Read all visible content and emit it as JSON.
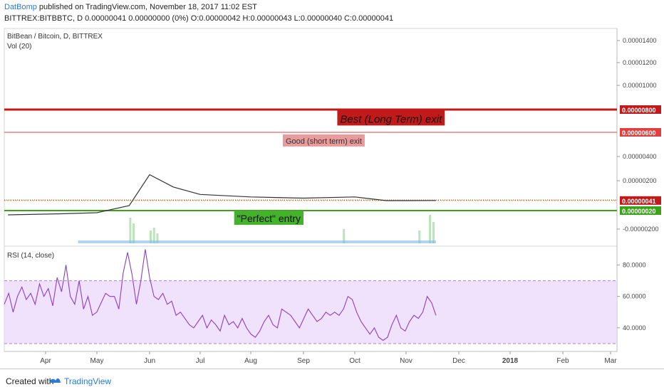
{
  "header": {
    "author": "DatBomp",
    "published": "published on TradingView.com, November 18, 2017 11:02 EST",
    "symbol_line": "BITTREX:BITBBTC, D  0.00000041 0.00000000 (0%) O:0.00000042 H:0.00000043 L:0.00000040 C:0.00000041"
  },
  "footer": {
    "created_with": "Created with",
    "brand": "TradingView"
  },
  "chart_data": [
    {
      "type": "candlestick",
      "title": "BitBean / Bitcoin, D, BITTREX",
      "subtitle": "Vol (20)",
      "y_ticks": [
        "0.00001400",
        "0.00001200",
        "0.00001000",
        "0.00000400",
        "0.00000200",
        "-0.00000200"
      ],
      "ylim": [
        -2.4e-06,
        1.5e-06
      ],
      "price_labels": [
        {
          "value": "0.00000800",
          "y": 8e-06,
          "color": "#c21a1a"
        },
        {
          "value": "0.00000600",
          "y": 6e-06,
          "color": "#e04040"
        },
        {
          "value": "0.00000041",
          "y": 4.1e-07,
          "color": "#c21a1a"
        },
        {
          "value": "0.00000020",
          "y": 2e-07,
          "color": "#3aa31a"
        }
      ],
      "annotations": [
        {
          "text": "Best (Long Term) exit",
          "y": 7.1e-06,
          "x": "2017-11-23",
          "color": "#c21a1a"
        },
        {
          "text": "Good (short term) exit",
          "y": 5.3e-06,
          "x": "2017-10-07",
          "color": "#e07070"
        },
        {
          "text": "\"Perfect\" entry",
          "y": -6e-07,
          "x": "2017-09-01",
          "color": "#44b22a"
        }
      ],
      "series": [
        {
          "dates": [
            "2017-03-10",
            "2017-04-10",
            "2017-05-01",
            "2017-05-20",
            "2017-06-01",
            "2017-06-15",
            "2017-07-01",
            "2017-08-01",
            "2017-09-01",
            "2017-10-01",
            "2017-10-20",
            "2017-11-01",
            "2017-11-18"
          ],
          "close": [
            0.0,
            5e-08,
            1e-07,
            3e-07,
            2.5e-06,
            1.5e-06,
            9e-07,
            7e-07,
            6e-07,
            7e-07,
            4e-07,
            4e-07,
            4.1e-07
          ]
        }
      ]
    },
    {
      "type": "line",
      "title": "RSI (14, close)",
      "y_ticks": [
        "80.0000",
        "60.0000",
        "40.0000"
      ],
      "ylim": [
        25,
        92
      ],
      "band": [
        30,
        70
      ],
      "x_ticks": [
        "Apr",
        "May",
        "Jun",
        "Jul",
        "Aug",
        "Sep",
        "Oct",
        "Nov",
        "Dec",
        "2018",
        "Feb",
        "Mar"
      ],
      "series": [
        {
          "values": [
            55,
            62,
            50,
            60,
            66,
            58,
            62,
            55,
            68,
            60,
            65,
            54,
            72,
            63,
            80,
            60,
            55,
            70,
            52,
            60,
            48,
            50,
            56,
            62,
            60,
            60,
            52,
            75,
            88,
            74,
            55,
            70,
            90,
            72,
            60,
            58,
            62,
            55,
            57,
            48,
            50,
            46,
            42,
            40,
            44,
            48,
            40,
            45,
            42,
            38,
            48,
            42,
            44,
            40,
            46,
            40,
            36,
            34,
            38,
            44,
            48,
            42,
            40,
            52,
            50,
            48,
            44,
            40,
            46,
            52,
            48,
            44,
            46,
            50,
            48,
            50,
            48,
            52,
            60,
            58,
            50,
            44,
            40,
            36,
            40,
            34,
            32,
            34,
            42,
            48,
            40,
            38,
            44,
            48,
            46,
            50,
            60,
            56,
            48
          ]
        }
      ]
    }
  ]
}
